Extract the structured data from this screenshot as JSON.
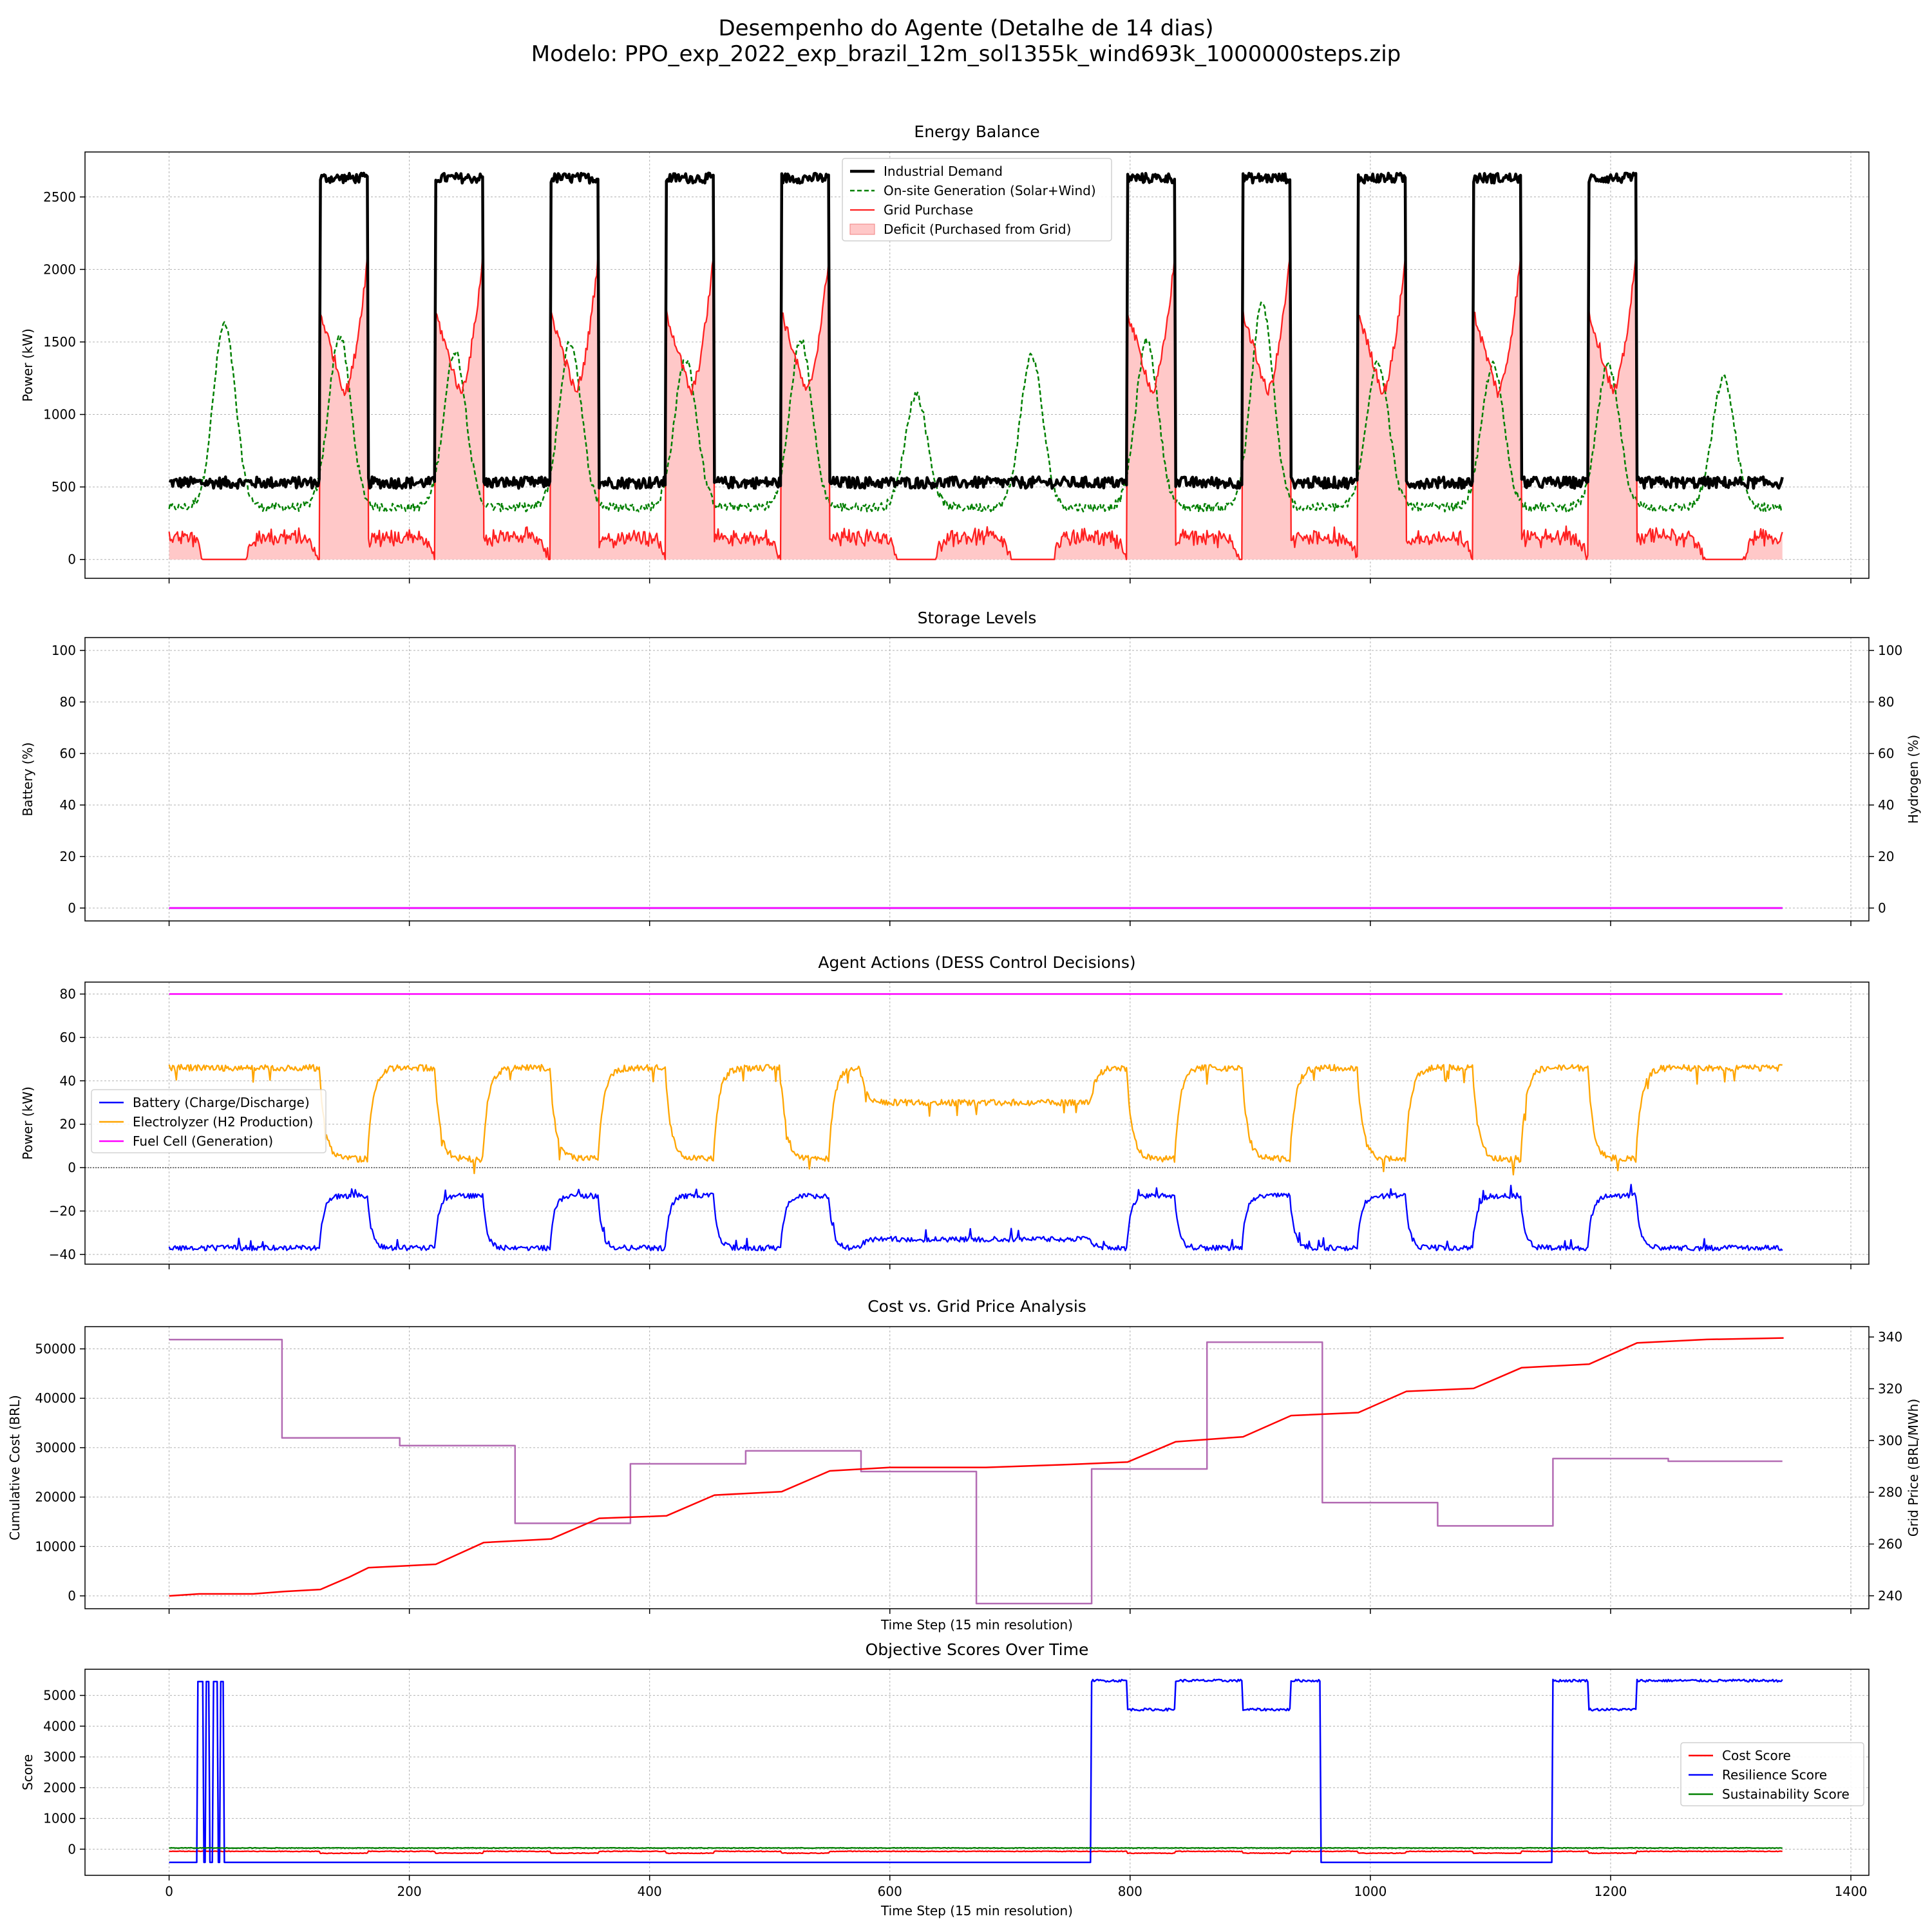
{
  "figure": {
    "title_line1": "Desempenho do Agente (Detalhe de 14 dias)",
    "title_line2": "Modelo: PPO_exp_2022_exp_brazil_12m_sol1355k_wind693k_1000000steps.zip"
  },
  "colors": {
    "demand": "#000000",
    "generation": "#008000",
    "grid": "#ff2020",
    "deficit_fill": "#ffc8c8",
    "battery": "#0000ff",
    "electrolyzer": "#ffa500",
    "fuel_cell": "#ff00ff",
    "cost": "#ff0000",
    "price": "#b36bb3",
    "price_axis": "#800080",
    "cost_score": "#ff0000",
    "resilience_score": "#0000ff",
    "sustainability_score": "#008000",
    "grid_lines": "#b0b0b0"
  },
  "chart_data": [
    {
      "type": "line",
      "title": "Energy Balance",
      "ylabel": "Power (kW)",
      "xlim": [
        -70,
        1415
      ],
      "ylim": [
        -130,
        2810
      ],
      "x_ticks": [
        0,
        200,
        400,
        600,
        800,
        1000,
        1200,
        1400
      ],
      "x_tick_labels_visible": false,
      "y_ticks": [
        0,
        500,
        1000,
        1500,
        2000,
        2500
      ],
      "grid": true,
      "legend_position": "top-center",
      "n_steps": 1344,
      "day_steps": 96,
      "weekly_pattern": "high demand blocks days 2-6 and 10-14 (period 672)",
      "series": [
        {
          "name": "Industrial Demand",
          "low_kw": 530,
          "high_kw": 2630,
          "high_blocks": [
            [
              126,
              166
            ],
            [
              222,
              262
            ],
            [
              318,
              358
            ],
            [
              414,
              454
            ],
            [
              510,
              550
            ],
            [
              798,
              838
            ],
            [
              894,
              934
            ],
            [
              990,
              1030
            ],
            [
              1086,
              1126
            ],
            [
              1182,
              1222
            ]
          ]
        },
        {
          "name": "On-site Generation (Solar+Wind)",
          "baseline_kw": 360,
          "daily_peaks_kw": [
            1620,
            1540,
            1440,
            1500,
            1380,
            1510,
            1140,
            1410,
            1510,
            1760,
            1370,
            1340,
            1340,
            1250
          ],
          "peak_offset_steps": 46
        },
        {
          "name": "Grid Purchase",
          "low_period_kw": 180,
          "block_start_kw": 1700,
          "block_mid_kw": 1150,
          "block_end_kw": 2150
        },
        {
          "name": "Deficit (Purchased from Grid)"
        }
      ]
    },
    {
      "type": "line",
      "title": "Storage Levels",
      "ylabel": "Battery (%)",
      "ylabel_right": "Hydrogen (%)",
      "xlim": [
        -70,
        1415
      ],
      "ylim": [
        -5,
        105
      ],
      "x_ticks": [
        0,
        200,
        400,
        600,
        800,
        1000,
        1200,
        1400
      ],
      "x_tick_labels_visible": false,
      "y_ticks": [
        0,
        20,
        40,
        60,
        80,
        100
      ],
      "y_ticks_right": [
        0,
        20,
        40,
        60,
        80,
        100
      ],
      "grid": true,
      "series": [
        {
          "axis": "left",
          "value": 0
        },
        {
          "axis": "right",
          "value": 0
        }
      ]
    },
    {
      "type": "line",
      "title": "Agent Actions (DESS Control Decisions)",
      "ylabel": "Power (kW)",
      "xlim": [
        -70,
        1415
      ],
      "ylim": [
        -44.5,
        85.5
      ],
      "x_ticks": [
        0,
        200,
        400,
        600,
        800,
        1000,
        1200,
        1400
      ],
      "x_tick_labels_visible": false,
      "y_ticks": [
        -40,
        -20,
        0,
        20,
        40,
        60,
        80
      ],
      "grid": true,
      "zero_line": true,
      "legend_position": "center-left",
      "series": [
        {
          "name": "Battery (Charge/Discharge)",
          "low_period_value": -37,
          "high_block_value": -13
        },
        {
          "name": "Electrolyzer (H2 Production)",
          "low_period_value": 46,
          "high_block_value": 4
        },
        {
          "name": "Fuel Cell (Generation)",
          "value": 80
        }
      ]
    },
    {
      "type": "line",
      "title": "Cost vs. Grid Price Analysis",
      "xlabel": "Time Step (15 min resolution)",
      "ylabel": "Cumulative Cost (BRL)",
      "ylabel_right": "Grid Price (BRL/MWh)",
      "xlim": [
        -70,
        1415
      ],
      "ylim": [
        -2600,
        54500
      ],
      "ylim_right": [
        235,
        344
      ],
      "x_ticks": [
        0,
        200,
        400,
        600,
        800,
        1000,
        1200,
        1400
      ],
      "x_tick_labels_visible": false,
      "y_ticks": [
        0,
        10000,
        20000,
        30000,
        40000,
        50000
      ],
      "y_ticks_right": [
        240,
        260,
        280,
        300,
        320,
        340
      ],
      "grid": true,
      "series": [
        {
          "name": "Cumulative Cost",
          "axis": "left",
          "x": [
            0,
            25,
            70,
            96,
            126,
            150,
            166,
            222,
            262,
            318,
            358,
            414,
            454,
            510,
            550,
            600,
            680,
            750,
            798,
            838,
            894,
            934,
            990,
            1030,
            1086,
            1126,
            1182,
            1222,
            1280,
            1344
          ],
          "y": [
            0,
            400,
            400,
            900,
            1300,
            3800,
            5700,
            6400,
            10800,
            11500,
            15700,
            16200,
            20400,
            21100,
            25300,
            26000,
            26000,
            26600,
            27100,
            31200,
            32200,
            36500,
            37100,
            41400,
            42000,
            46200,
            46900,
            51200,
            51900,
            52200
          ]
        },
        {
          "name": "Grid Price",
          "axis": "right",
          "steps": [
            [
              0,
              339
            ],
            [
              94,
              301
            ],
            [
              192,
              298
            ],
            [
              288,
              268
            ],
            [
              384,
              291
            ],
            [
              480,
              296
            ],
            [
              576,
              288
            ],
            [
              672,
              237
            ],
            [
              768,
              289
            ],
            [
              864,
              338
            ],
            [
              960,
              276
            ],
            [
              1056,
              267
            ],
            [
              1152,
              293
            ],
            [
              1248,
              292
            ]
          ]
        }
      ]
    },
    {
      "type": "line",
      "title": "Objective Scores Over Time",
      "xlabel": "Time Step (15 min resolution)",
      "ylabel": "Score",
      "xlim": [
        -70,
        1415
      ],
      "ylim": [
        -850,
        5850
      ],
      "x_ticks": [
        0,
        200,
        400,
        600,
        800,
        1000,
        1200,
        1400
      ],
      "x_tick_labels_visible": true,
      "y_ticks": [
        0,
        1000,
        2000,
        3000,
        4000,
        5000
      ],
      "grid": true,
      "legend_position": "center-right",
      "series": [
        {
          "name": "Cost Score",
          "baseline": -70,
          "block_value": -130
        },
        {
          "name": "Resilience Score",
          "baseline": -430,
          "spikes": [
            [
              24,
              29
            ],
            [
              31,
              34
            ],
            [
              37,
              41
            ],
            [
              43,
              46
            ]
          ],
          "spike_value": 5450,
          "high_ranges": [
            [
              768,
              958
            ],
            [
              1152,
              1344
            ]
          ],
          "high_value": 5480,
          "dip_ranges": [
            [
              798,
              838
            ],
            [
              894,
              934
            ],
            [
              1182,
              1222
            ]
          ],
          "dip_value": 4540
        },
        {
          "name": "Sustainability Score",
          "baseline": 40
        }
      ]
    }
  ]
}
